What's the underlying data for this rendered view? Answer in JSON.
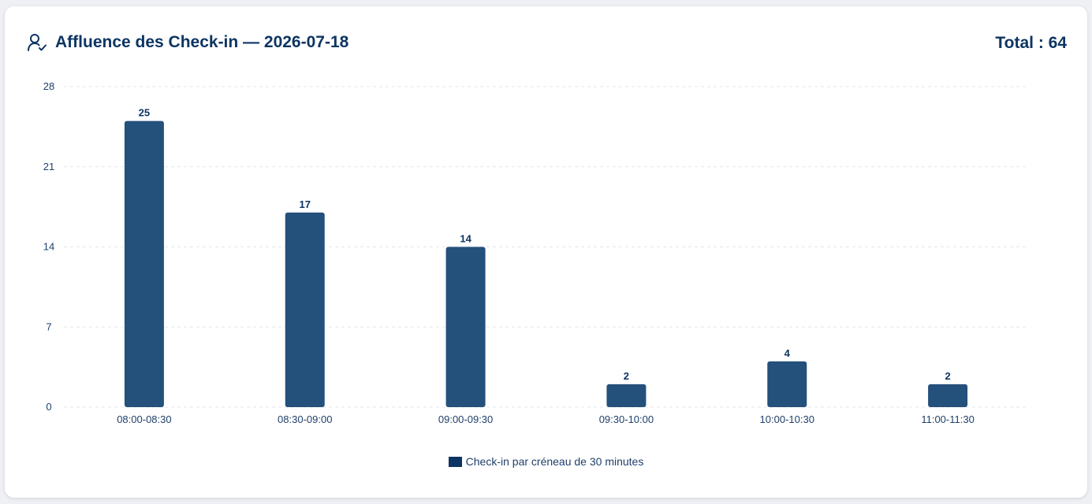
{
  "header": {
    "title": "Affluence des Check-in — 2026-07-18",
    "total": "Total : 64",
    "icon": "user-check-icon"
  },
  "colors": {
    "bar": "#24507c",
    "title": "#0d3563",
    "legend_swatch": "#0d3563",
    "gridline": "#e4e7ec"
  },
  "chart_data": {
    "type": "bar",
    "categories": [
      "08:00-08:30",
      "08:30-09:00",
      "09:00-09:30",
      "09:30-10:00",
      "10:00-10:30",
      "11:00-11:30"
    ],
    "series": [
      {
        "name": "Check-in par créneau de 30 minutes",
        "values": [
          25,
          17,
          14,
          2,
          4,
          2
        ]
      }
    ],
    "ylim": [
      0,
      28
    ],
    "yticks": [
      0,
      7,
      14,
      21,
      28
    ],
    "grid": true,
    "data_labels": true,
    "legend": "bottom-center"
  }
}
